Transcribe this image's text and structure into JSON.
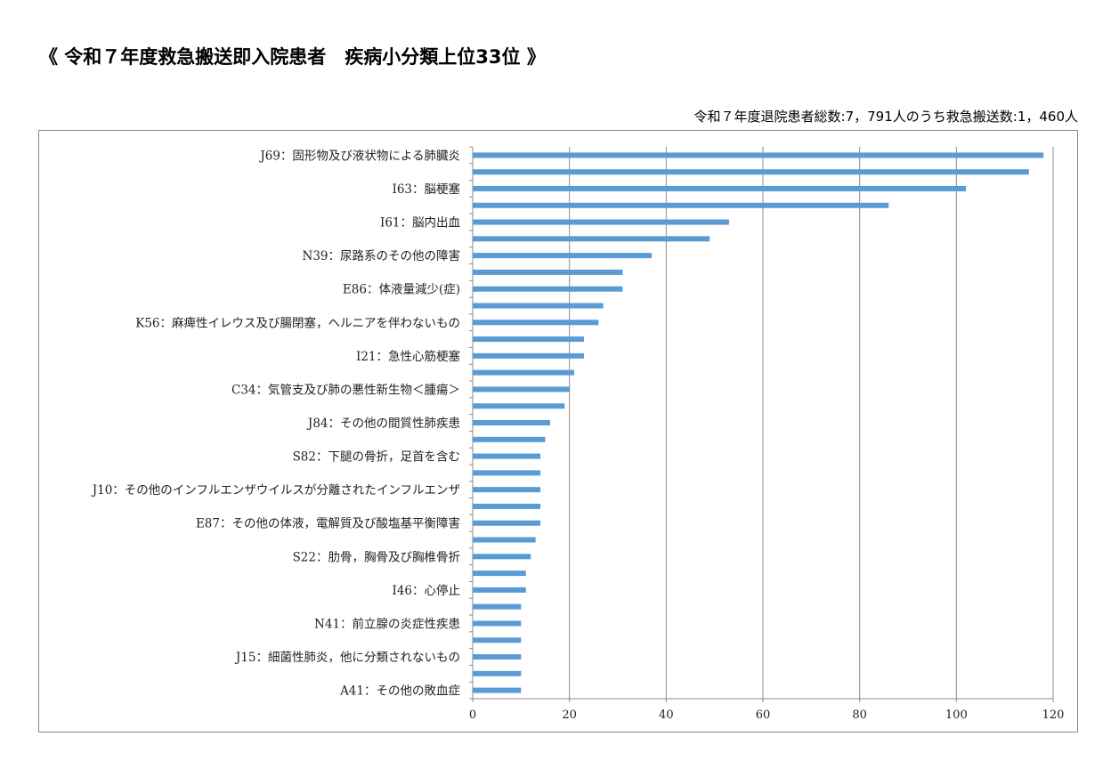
{
  "title": "《 令和７年度救急搬送即入院患者　疾病小分類上位33位 》",
  "subtitle": "令和７年度退院患者総数:7，791人のうち救急搬送数:1，460人",
  "chart_data": {
    "type": "bar",
    "orientation": "horizontal",
    "bar_color": "#5b9bd5",
    "categories": [
      "J69：固形物及び液状物による肺臓炎",
      "",
      "I63：脳梗塞",
      "",
      "I61：脳内出血",
      "",
      "N39：尿路系のその他の障害",
      "",
      "E86：体液量減少(症)",
      "",
      "K56：麻痺性イレウス及び腸閉塞，ヘルニアを伴わないもの",
      "",
      "I21：急性心筋梗塞",
      "",
      "C34：気管支及び肺の悪性新生物＜腫瘍＞",
      "",
      "J84：その他の間質性肺疾患",
      "",
      "S82：下腿の骨折，足首を含む",
      "",
      "J10：その他のインフルエンザウイルスが分離されたインフルエンザ",
      "",
      "E87：その他の体液，電解質及び酸塩基平衡障害",
      "",
      "S22：肋骨，胸骨及び胸椎骨折",
      "",
      "I46：心停止",
      "",
      "N41：前立腺の炎症性疾患",
      "",
      "J15：細菌性肺炎，他に分類されないもの",
      "",
      "A41：その他の敗血症"
    ],
    "values": [
      118,
      115,
      102,
      86,
      53,
      49,
      37,
      31,
      31,
      27,
      26,
      23,
      23,
      21,
      20,
      19,
      16,
      15,
      14,
      14,
      14,
      14,
      14,
      13,
      12,
      11,
      11,
      10,
      10,
      10,
      10,
      10,
      10
    ],
    "xlim": [
      0,
      120
    ],
    "xticks": [
      0,
      20,
      40,
      60,
      80,
      100,
      120
    ],
    "grid": "vertical",
    "legend": "none"
  }
}
